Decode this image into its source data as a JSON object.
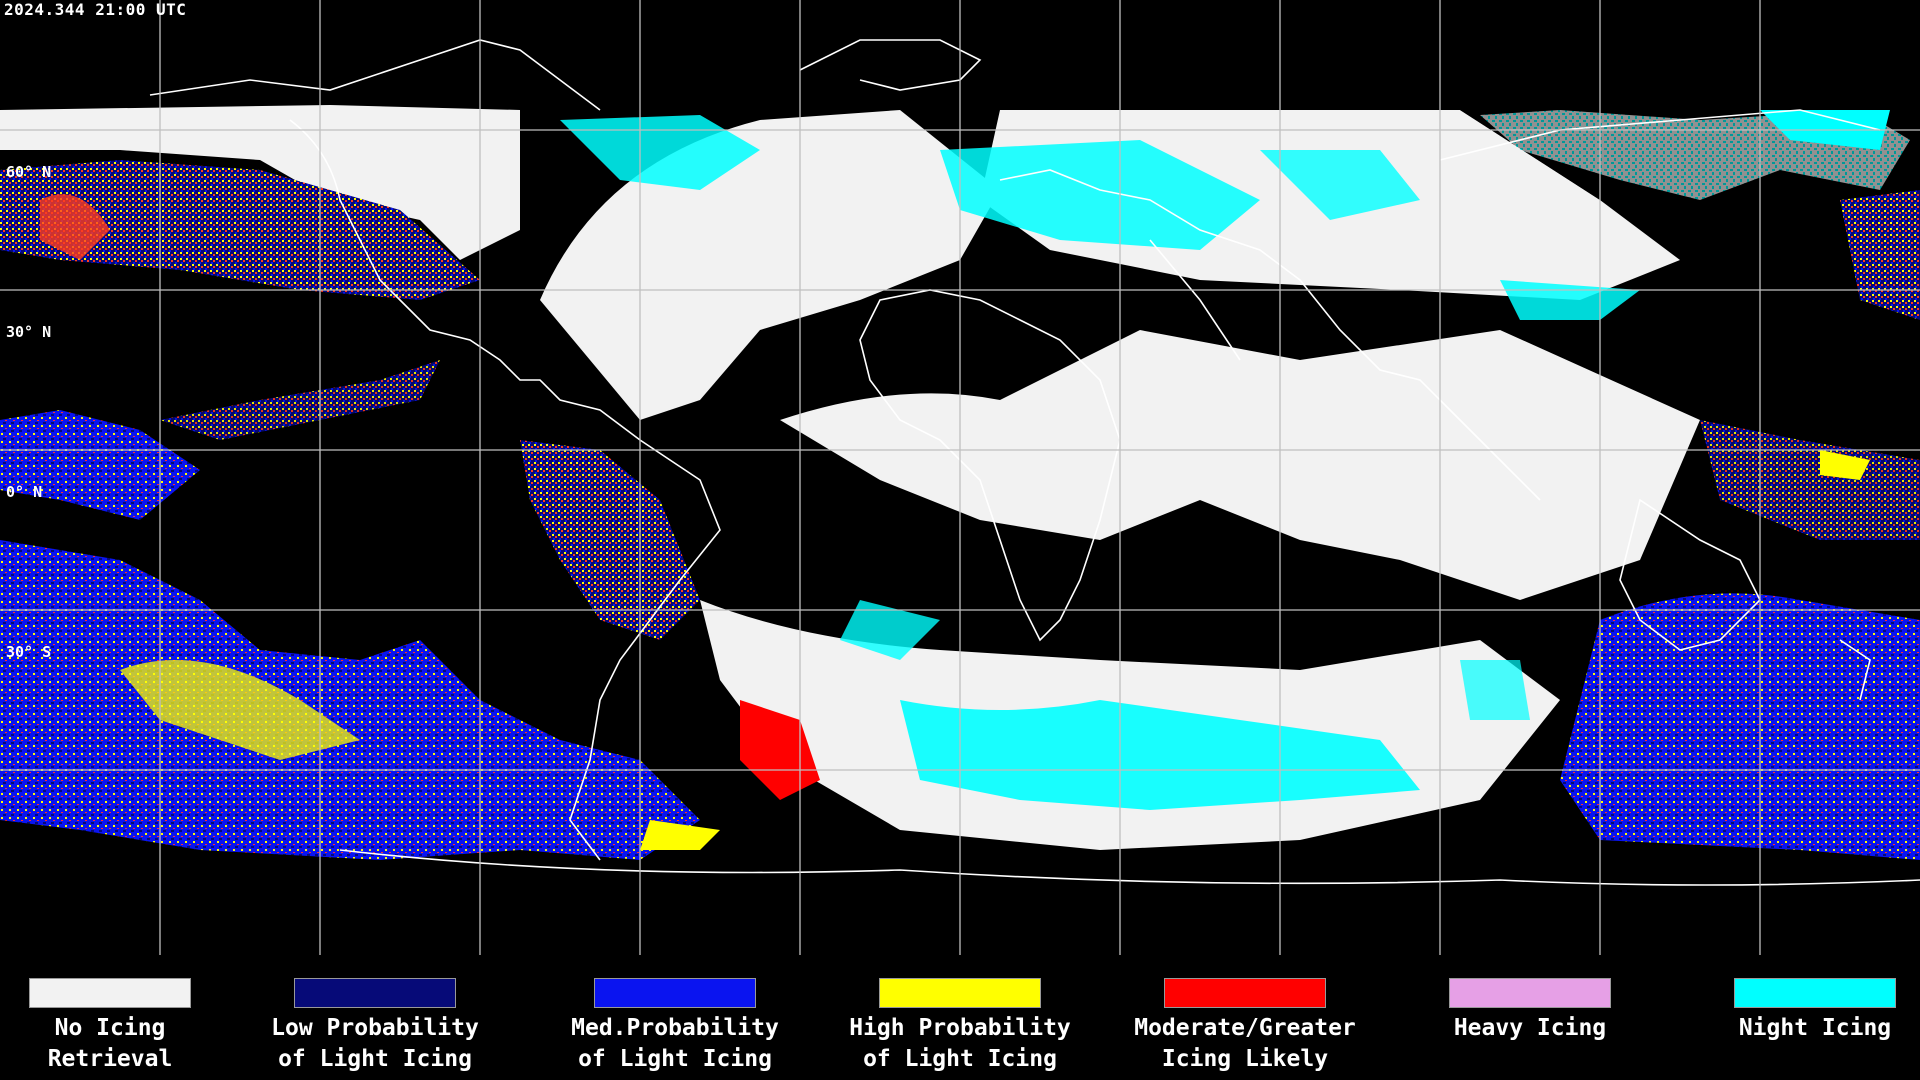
{
  "timestamp": "2024.344 21:00 UTC",
  "lat_labels": [
    "60° N",
    "30° N",
    "0° N",
    "30° S"
  ],
  "legend": [
    {
      "line1": "No Icing",
      "line2": "Retrieval",
      "color": "#f2f2f2"
    },
    {
      "line1": "Low Probability",
      "line2": "of Light Icing",
      "color": "#060a78"
    },
    {
      "line1": "Med.Probability",
      "line2": "of Light Icing",
      "color": "#0a14f0"
    },
    {
      "line1": "High Probability",
      "line2": "of Light Icing",
      "color": "#ffff00"
    },
    {
      "line1": "Moderate/Greater",
      "line2": "Icing Likely",
      "color": "#ff0000"
    },
    {
      "line1": "Heavy Icing",
      "line2": "",
      "color": "#e6a0e6"
    },
    {
      "line1": "Night Icing",
      "line2": "",
      "color": "#00ffff"
    }
  ],
  "colors": {
    "background": "#000000",
    "grid": "#bfbfbf",
    "coastline": "#ffffff",
    "no_icing": "#f2f2f2",
    "low_prob": "#060a78",
    "med_prob": "#0a14f0",
    "high_prob": "#ffff00",
    "moderate": "#ff0000",
    "night": "#00ffff"
  }
}
